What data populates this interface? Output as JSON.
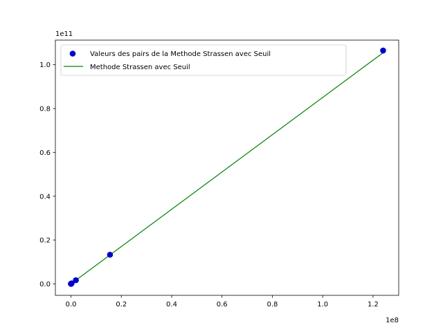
{
  "chart_data": {
    "type": "scatter",
    "title": "",
    "xlabel": "",
    "ylabel": "",
    "x_offset_label": "1e8",
    "y_offset_label": "1e11",
    "x_scale": 100000000,
    "y_scale": 100000000000,
    "xlim": [
      -0.062,
      1.302
    ],
    "ylim": [
      -0.0525,
      1.1125
    ],
    "x_ticks": [
      0.0,
      0.2,
      0.4,
      0.6,
      0.8,
      1.0,
      1.2
    ],
    "x_tick_labels": [
      "0.0",
      "0.2",
      "0.4",
      "0.6",
      "0.8",
      "1.0",
      "1.2"
    ],
    "y_ticks": [
      0.0,
      0.2,
      0.4,
      0.6,
      0.8,
      1.0
    ],
    "y_tick_labels": [
      "0.0",
      "0.2",
      "0.4",
      "0.6",
      "0.8",
      "1.0"
    ],
    "grid": false,
    "legend_position": "top-left",
    "series": [
      {
        "name": "Valeurs des pairs de la Methode Strassen avec Seuil",
        "kind": "scatter",
        "color": "#0000cc",
        "x": [
          0.0,
          1e-05,
          0.0003,
          0.0024,
          0.0195,
          0.155,
          1.24
        ],
        "y": [
          0.0,
          1e-05,
          0.0003,
          0.0021,
          0.0166,
          0.133,
          1.065
        ]
      },
      {
        "name": "Methode Strassen avec Seuil",
        "kind": "line",
        "color": "#008000",
        "x": [
          0.0,
          1.24
        ],
        "y": [
          0.0,
          1.055
        ]
      }
    ]
  }
}
